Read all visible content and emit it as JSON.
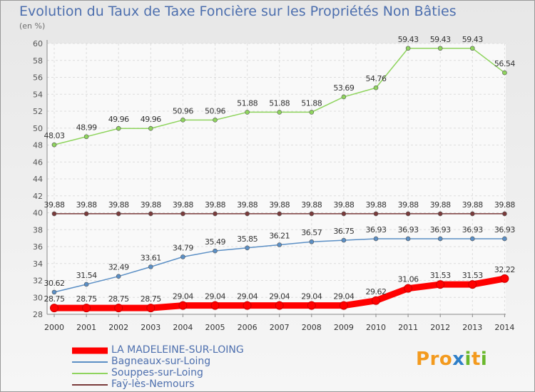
{
  "header": {
    "title": "Evolution du Taux de Taxe Foncière sur les Propriétés Non Bâties",
    "unit": "(en %)"
  },
  "logo": {
    "text": "Proxiti",
    "letters": [
      "P",
      "r",
      "o",
      "x",
      "i",
      "t",
      "i"
    ],
    "colors": [
      "#f39a1e",
      "#f39a1e",
      "#f39a1e",
      "#2e7fc8",
      "#6ab82c",
      "#f39a1e",
      "#6ab82c"
    ]
  },
  "chart_data": {
    "type": "line",
    "title": "Evolution du Taux de Taxe Foncière sur les Propriétés Non Bâties",
    "ylabel": "(en %)",
    "xlabel": "",
    "ylim": [
      28,
      60
    ],
    "yticks": [
      28,
      30,
      32,
      34,
      36,
      38,
      40,
      42,
      44,
      46,
      48,
      50,
      52,
      54,
      56,
      58,
      60
    ],
    "grid": true,
    "legend_position": "bottom-left",
    "categories": [
      "2000",
      "2001",
      "2002",
      "2003",
      "2004",
      "2005",
      "2006",
      "2007",
      "2008",
      "2009",
      "2010",
      "2011",
      "2012",
      "2013",
      "2014"
    ],
    "series": [
      {
        "name": "LA MADELEINE-SUR-LOING",
        "color": "#ff0000",
        "emphasis": true,
        "values": [
          28.75,
          28.75,
          28.75,
          28.75,
          29.04,
          29.04,
          29.04,
          29.04,
          29.04,
          29.04,
          29.62,
          31.06,
          31.53,
          31.53,
          32.22
        ],
        "labels": [
          "28.75",
          "28.75",
          "28.75",
          "28.75",
          "29.04",
          "29.04",
          "29.04",
          "29.04",
          "29.04",
          "29.04",
          "29.62",
          "31.06",
          "31.53",
          "31.53",
          "32.22"
        ]
      },
      {
        "name": "Bagneaux-sur-Loing",
        "color": "#5b8fc5",
        "values": [
          30.62,
          31.54,
          32.49,
          33.61,
          34.79,
          35.49,
          35.85,
          36.21,
          36.57,
          36.75,
          36.93,
          36.93,
          36.93,
          36.93,
          36.93
        ],
        "labels": [
          "30.62",
          "31.54",
          "32.49",
          "33.61",
          "34.79",
          "35.49",
          "35.85",
          "36.21",
          "36.57",
          "36.75",
          "36.93",
          "36.93",
          "36.93",
          "36.93",
          "36.93"
        ]
      },
      {
        "name": "Souppes-sur-Loing",
        "color": "#8fd45e",
        "values": [
          48.03,
          48.99,
          49.96,
          49.96,
          50.96,
          50.96,
          51.88,
          51.88,
          51.88,
          53.69,
          54.76,
          59.43,
          59.43,
          59.43,
          56.54
        ],
        "labels": [
          "48.03",
          "48.99",
          "49.96",
          "49.96",
          "50.96",
          "50.96",
          "51.88",
          "51.88",
          "51.88",
          "53.69",
          "54.76",
          "59.43",
          "59.43",
          "59.43",
          "56.54"
        ]
      },
      {
        "name": "Faÿ-lès-Nemours",
        "color": "#7a3b3b",
        "values": [
          39.88,
          39.88,
          39.88,
          39.88,
          39.88,
          39.88,
          39.88,
          39.88,
          39.88,
          39.88,
          39.88,
          39.88,
          39.88,
          39.88,
          39.88
        ],
        "labels": [
          "39.88",
          "39.88",
          "39.88",
          "39.88",
          "39.88",
          "39.88",
          "39.88",
          "39.88",
          "39.88",
          "39.88",
          "39.88",
          "39.88",
          "39.88",
          "39.88",
          "39.88"
        ]
      }
    ]
  }
}
